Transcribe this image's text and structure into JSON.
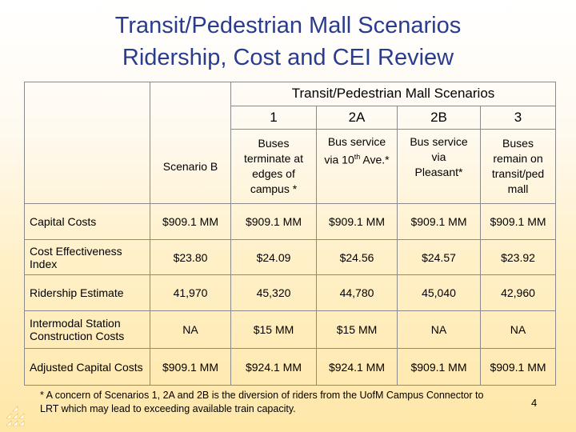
{
  "slide": {
    "title_line1": "Transit/Pedestrian Mall Scenarios",
    "title_line2": "Ridership, Cost and CEI Review",
    "page_number": "4"
  },
  "table": {
    "group_header": "Transit/Pedestrian Mall Scenarios",
    "scenario_numbers": [
      "1",
      "2A",
      "2B",
      "3"
    ],
    "scenario_b_label": "Scenario B",
    "descriptions": {
      "s1": [
        "Buses",
        "terminate at",
        "edges of",
        "campus *"
      ],
      "s2a_line1": "Bus service",
      "s2a_line2_pre": "via 10",
      "s2a_line2_sup": "th",
      "s2a_line2_post": " Ave.*",
      "s2b": [
        "Bus service",
        "via",
        "Pleasant*"
      ],
      "s3": [
        "Buses",
        "remain on",
        "transit/ped",
        "mall"
      ]
    },
    "rows": [
      {
        "label": "Capital Costs",
        "values": [
          "$909.1 MM",
          "$909.1 MM",
          "$909.1 MM",
          "$909.1 MM",
          "$909.1 MM"
        ]
      },
      {
        "label": "Cost Effectiveness Index",
        "values": [
          "$23.80",
          "$24.09",
          "$24.56",
          "$24.57",
          "$23.92"
        ]
      },
      {
        "label": "Ridership Estimate",
        "values": [
          "41,970",
          "45,320",
          "44,780",
          "45,040",
          "42,960"
        ]
      },
      {
        "label": "Intermodal Station Construction Costs",
        "values": [
          "NA",
          "$15 MM",
          "$15 MM",
          "NA",
          "NA"
        ]
      },
      {
        "label": "Adjusted Capital Costs",
        "values": [
          "$909.1 MM",
          "$924.1 MM",
          "$924.1 MM",
          "$909.1 MM",
          "$909.1 MM"
        ]
      }
    ]
  },
  "footnote": {
    "line1": "* A concern of Scenarios 1, 2A and 2B is the diversion of riders from the UofM Campus Connector to",
    "line2": "LRT which may lead to exceeding available train capacity."
  },
  "colors": {
    "title": "#2a3c8e",
    "logo": "#ffffff"
  }
}
